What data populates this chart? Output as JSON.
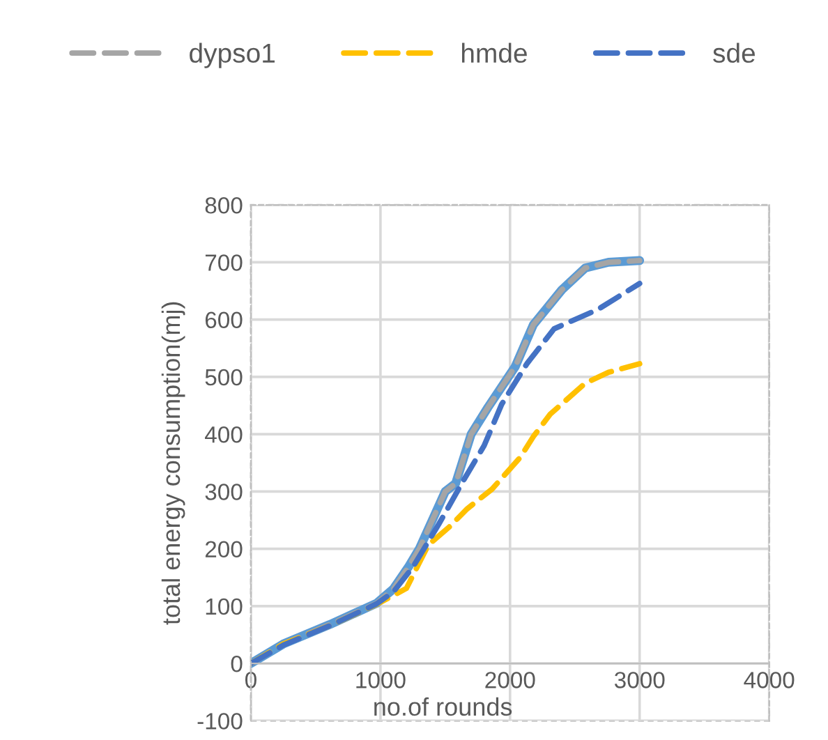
{
  "chart_data": {
    "type": "line",
    "xlabel": "no.of rounds",
    "ylabel": "total energy consumption(mj)",
    "xlim": [
      0,
      4000
    ],
    "ylim": [
      -100,
      800
    ],
    "xticks": [
      0,
      1000,
      2000,
      3000,
      4000
    ],
    "yticks": [
      -100,
      0,
      100,
      200,
      300,
      400,
      500,
      600,
      700,
      800
    ],
    "grid": true,
    "legend": "top",
    "marker": "none",
    "series": [
      {
        "color": "#5b9bd5",
        "line_style": "solid",
        "x": [
          0,
          250,
          610,
          970,
          1100,
          1215,
          1300,
          1400,
          1500,
          1580,
          1700,
          1830,
          2040,
          2180,
          2400,
          2580,
          2760,
          3000
        ],
        "values": [
          0,
          34,
          68,
          105,
          130,
          168,
          200,
          250,
          300,
          314,
          400,
          447,
          518,
          591,
          652,
          690,
          700,
          703
        ]
      },
      {
        "name": "dypso1",
        "color": "#a5a5a5",
        "line_style": "dashed",
        "x": [
          0,
          250,
          610,
          970,
          1100,
          1215,
          1300,
          1400,
          1500,
          1580,
          1700,
          1830,
          2040,
          2180,
          2400,
          2580,
          2760,
          3000
        ],
        "values": [
          0,
          34,
          68,
          105,
          130,
          168,
          200,
          250,
          300,
          314,
          400,
          447,
          518,
          591,
          652,
          690,
          700,
          703
        ]
      },
      {
        "name": "hmde",
        "color": "#ffc000",
        "line_style": "dashed",
        "x": [
          0,
          250,
          610,
          970,
          1200,
          1370,
          1530,
          1670,
          1860,
          2080,
          2180,
          2310,
          2580,
          2760,
          3000
        ],
        "values": [
          0,
          34,
          66,
          103,
          131,
          207,
          238,
          270,
          304,
          360,
          396,
          435,
          489,
          508,
          523
        ]
      },
      {
        "name": "sde",
        "color": "#4472c4",
        "line_style": "dashed",
        "x": [
          0,
          250,
          610,
          970,
          1100,
          1250,
          1450,
          1650,
          1800,
          1935,
          2130,
          2340,
          2680,
          3000
        ],
        "values": [
          0,
          32,
          66,
          104,
          125,
          168,
          243,
          323,
          380,
          452,
          523,
          584,
          618,
          663
        ]
      }
    ]
  }
}
